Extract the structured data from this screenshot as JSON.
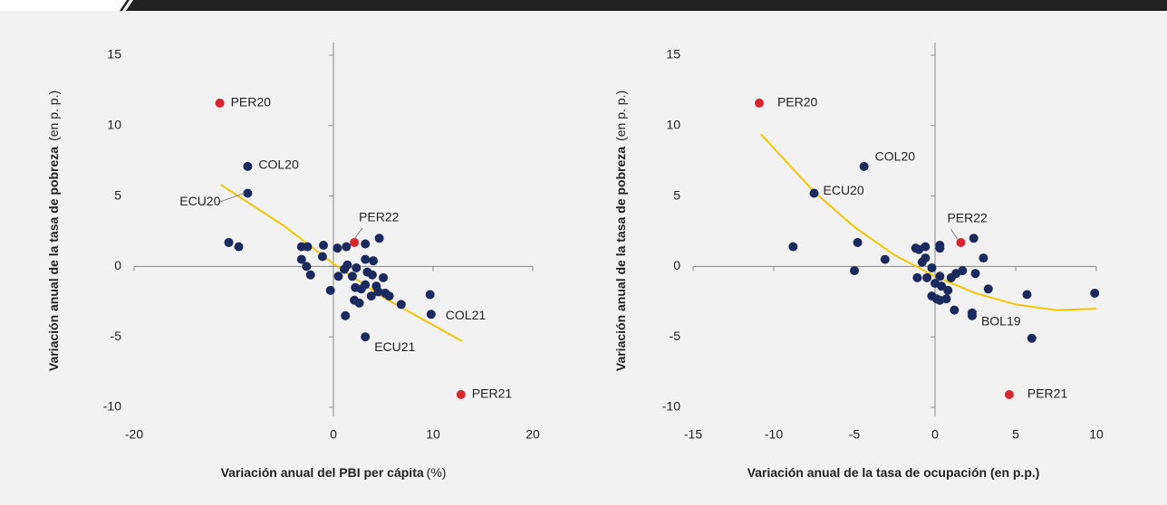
{
  "chart_data": [
    {
      "type": "scatter",
      "xlabel": "Variación anual del PBI per cápita",
      "xlabel_unit": "(%)",
      "ylabel": "Variación anual de la tasa de pobreza",
      "ylabel_unit": "(en p. p.)",
      "xlim": [
        -20,
        20
      ],
      "xticks": [
        -20,
        0,
        10,
        20
      ],
      "ylim": [
        -10,
        15
      ],
      "yticks": [
        -10,
        -5,
        0,
        5,
        10,
        15
      ],
      "series": [
        {
          "color": "#1b2a5e",
          "x": [
            -8.6,
            -8.6,
            3.2,
            9.8,
            -10.5,
            -9.5,
            -3.2,
            -2.6,
            -3.2,
            -2.7,
            -2.3,
            -1.0,
            -1.1,
            0.4,
            1.3,
            3.2,
            4.6,
            -0.3,
            1.2,
            2.1,
            2.6,
            6.8,
            9.7,
            0.5,
            1.4,
            1.9,
            2.3,
            3.2,
            3.4,
            4.0,
            3.9,
            3.2,
            4.3,
            3.8,
            4.5,
            5.2,
            5.0,
            5.6,
            2.8,
            1.1,
            2.2
          ],
          "y": [
            7.1,
            5.2,
            -5.0,
            -3.4,
            1.7,
            1.4,
            1.4,
            1.4,
            0.5,
            0.0,
            -0.6,
            1.5,
            0.7,
            1.3,
            1.4,
            1.6,
            2.0,
            -1.7,
            -3.5,
            -2.4,
            -2.6,
            -2.7,
            -2.0,
            -0.7,
            0.1,
            -0.7,
            -0.1,
            0.5,
            -0.4,
            0.4,
            -0.6,
            -1.3,
            -1.4,
            -2.1,
            -1.8,
            -1.9,
            -0.8,
            -2.1,
            -1.6,
            -0.2,
            -1.5
          ],
          "labels": [
            "COL20",
            "ECU20",
            "ECU21",
            "COL21",
            null,
            null,
            null,
            null,
            null,
            null,
            null,
            null,
            null,
            null,
            null,
            null,
            null,
            null,
            null,
            null,
            null,
            null,
            null,
            null,
            null,
            null,
            null,
            null,
            null,
            null,
            null,
            null,
            null,
            null,
            null,
            null,
            null,
            null,
            null,
            null,
            null
          ]
        },
        {
          "color": "#d7262e",
          "x": [
            -11.4,
            2.1,
            12.8
          ],
          "y": [
            11.6,
            1.7,
            -9.1
          ],
          "labels": [
            "PER20",
            "PER22",
            "PER21"
          ]
        }
      ],
      "fit": {
        "color": "#f5c400",
        "x": [
          -11.3,
          -5,
          0,
          5,
          12.9
        ],
        "y": [
          5.8,
          2.9,
          0.2,
          -2.2,
          -5.3
        ]
      }
    },
    {
      "type": "scatter",
      "xlabel": "Variación anual de la tasa de ocupación (en p.p.)",
      "ylabel": "Variación anual de la tasa de pobreza",
      "ylabel_unit": "(en p. p.)",
      "xlim": [
        -15,
        10
      ],
      "xticks": [
        -15,
        -10,
        -5,
        0,
        5,
        10
      ],
      "ylim": [
        -10,
        15
      ],
      "yticks": [
        -10,
        -5,
        0,
        5,
        10,
        15
      ],
      "series": [
        {
          "color": "#1b2a5e",
          "x": [
            -4.4,
            -7.5,
            2.3,
            -8.8,
            -4.8,
            -5.0,
            -3.1,
            -1.2,
            -1.0,
            -0.6,
            0.3,
            0.3,
            -0.8,
            -0.6,
            -1.1,
            -0.5,
            -0.2,
            0.0,
            -0.2,
            0.1,
            0.3,
            0.7,
            0.4,
            0.8,
            0.3,
            1.0,
            1.3,
            1.7,
            1.2,
            2.4,
            2.5,
            2.3,
            3.0,
            3.3,
            5.7,
            6.0,
            9.9
          ],
          "y": [
            7.1,
            5.2,
            -3.5,
            1.4,
            1.7,
            -0.3,
            0.5,
            1.3,
            1.2,
            1.4,
            1.5,
            1.3,
            0.3,
            0.6,
            -0.8,
            -0.8,
            -0.1,
            -1.2,
            -2.1,
            -2.3,
            -2.4,
            -2.3,
            -1.4,
            -1.7,
            -0.7,
            -0.8,
            -0.5,
            -0.3,
            -3.1,
            2.0,
            -0.5,
            -3.3,
            0.6,
            -1.6,
            -2.0,
            -5.1,
            -1.9
          ],
          "labels": [
            "COL20",
            "ECU20",
            "BOL19",
            null,
            null,
            null,
            null,
            null,
            null,
            null,
            null,
            null,
            null,
            null,
            null,
            null,
            null,
            null,
            null,
            null,
            null,
            null,
            null,
            null,
            null,
            null,
            null,
            null,
            null,
            null,
            null,
            null,
            null,
            null,
            null,
            null,
            null
          ]
        },
        {
          "color": "#d7262e",
          "x": [
            -10.9,
            1.6,
            4.6
          ],
          "y": [
            11.6,
            1.7,
            -9.1
          ],
          "labels": [
            "PER20",
            "PER22",
            "PER21"
          ]
        }
      ],
      "fit": {
        "color": "#f5c400",
        "x": [
          -10.8,
          -7.5,
          -5,
          -2.5,
          0,
          2.5,
          5,
          7.5,
          10
        ],
        "y": [
          9.4,
          5.3,
          2.8,
          0.8,
          -0.7,
          -1.9,
          -2.7,
          -3.1,
          -3.0
        ]
      }
    }
  ]
}
